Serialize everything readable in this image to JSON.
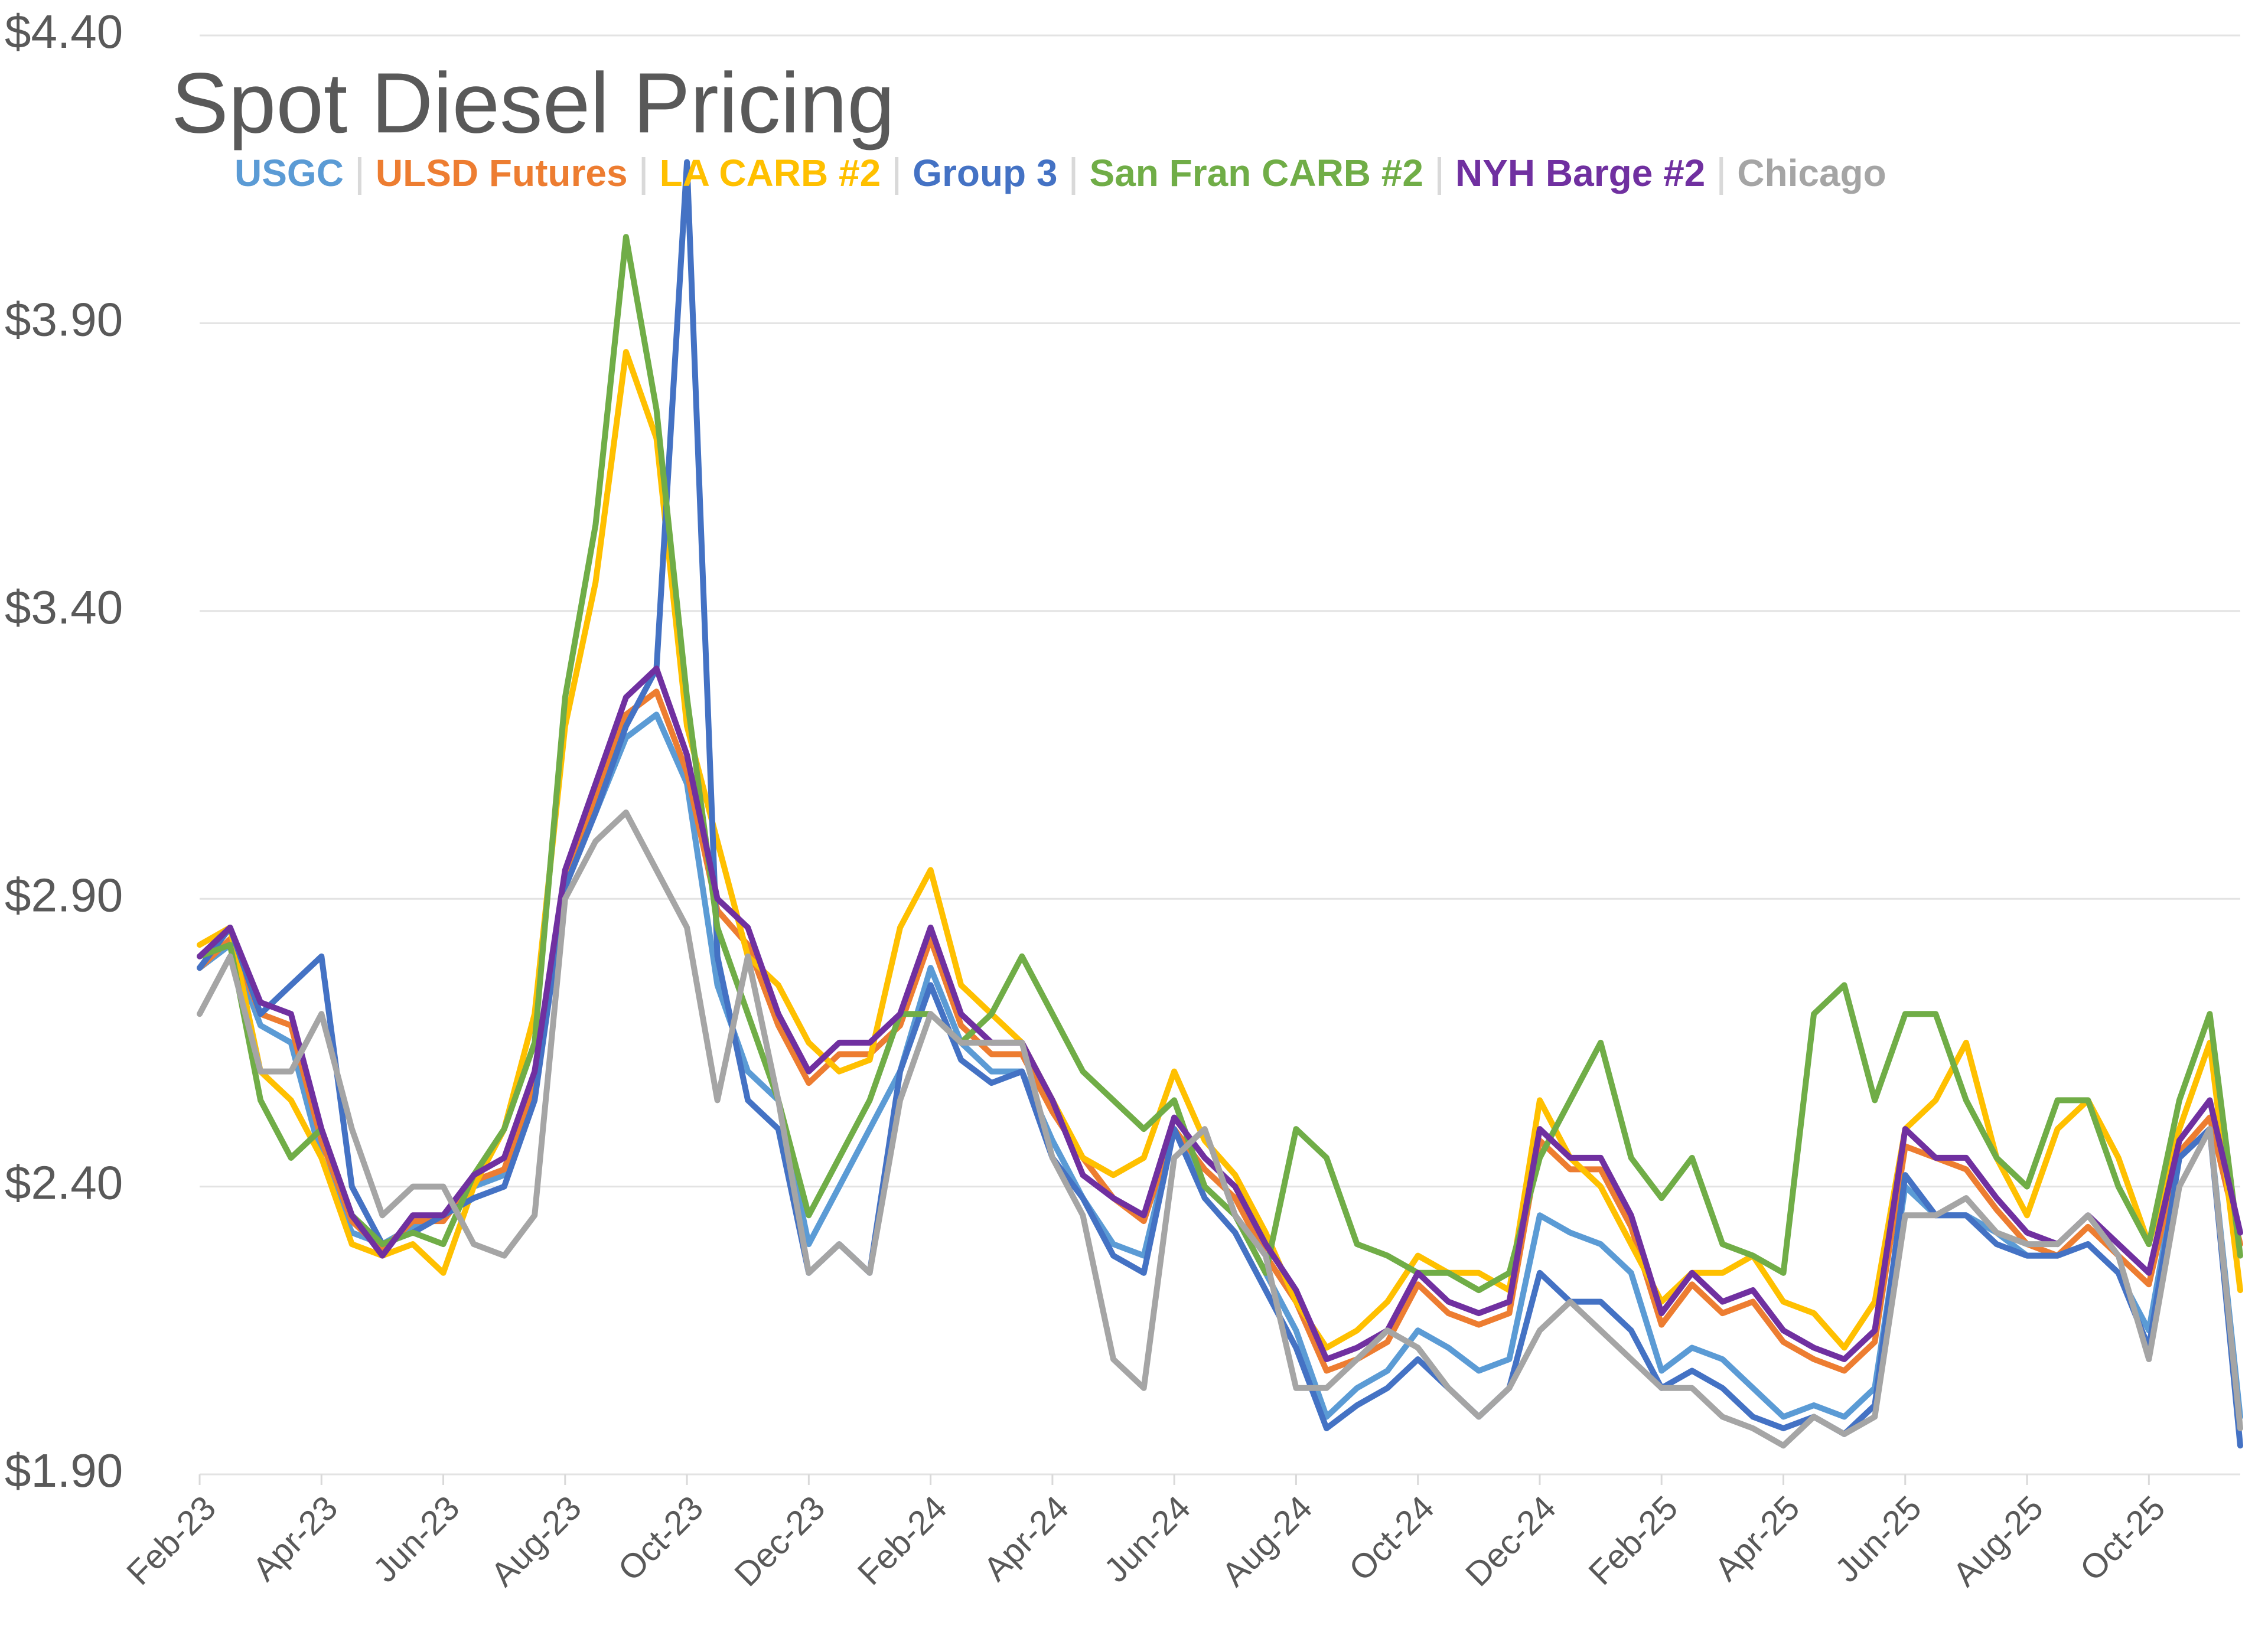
{
  "chart_data": {
    "type": "line",
    "title": "Spot Diesel Pricing",
    "categories": [
      "Feb-23",
      null,
      null,
      null,
      "Apr-23",
      null,
      null,
      null,
      "Jun-23",
      null,
      null,
      null,
      "Aug-23",
      null,
      null,
      null,
      "Oct-23",
      null,
      null,
      null,
      "Dec-23",
      null,
      null,
      null,
      "Feb-24",
      null,
      null,
      null,
      "Apr-24",
      null,
      null,
      null,
      "Jun-24",
      null,
      null,
      null,
      "Aug-24",
      null,
      null,
      null,
      "Oct-24",
      null,
      null,
      null,
      "Dec-24",
      null,
      null,
      null,
      "Feb-25",
      null,
      null,
      null,
      "Apr-25",
      null,
      null,
      null,
      "Jun-25",
      null,
      null,
      null,
      "Aug-25",
      null,
      null,
      null,
      "Oct-25",
      null,
      null,
      null
    ],
    "ylim": [
      1.9,
      4.4
    ],
    "yticks": [
      {
        "value": 1.9,
        "label": "$1.90"
      },
      {
        "value": 2.4,
        "label": "$2.40"
      },
      {
        "value": 2.9,
        "label": "$2.90"
      },
      {
        "value": 3.4,
        "label": "$3.40"
      },
      {
        "value": 3.9,
        "label": "$3.90"
      },
      {
        "value": 4.4,
        "label": "$4.40"
      }
    ],
    "grid": true,
    "series": [
      {
        "name": "USGC",
        "color": "#5b9bd5",
        "values": [
          2.78,
          2.82,
          2.68,
          2.65,
          2.45,
          2.32,
          2.3,
          2.33,
          2.35,
          2.4,
          2.42,
          2.58,
          2.92,
          3.05,
          3.18,
          3.22,
          3.1,
          2.75,
          2.6,
          2.55,
          2.3,
          2.4,
          2.5,
          2.6,
          2.78,
          2.65,
          2.6,
          2.6,
          2.48,
          2.38,
          2.3,
          2.28,
          2.5,
          2.4,
          2.35,
          2.25,
          2.15,
          2.0,
          2.05,
          2.08,
          2.15,
          2.12,
          2.08,
          2.1,
          2.35,
          2.32,
          2.3,
          2.25,
          2.08,
          2.12,
          2.1,
          2.05,
          2.0,
          2.02,
          2.0,
          2.05,
          2.4,
          2.35,
          2.35,
          2.32,
          2.28,
          2.28,
          2.3,
          2.25,
          2.15,
          2.45,
          2.5,
          2.0
        ]
      },
      {
        "name": "ULSD Futures",
        "color": "#ed7d31",
        "values": [
          2.78,
          2.83,
          2.7,
          2.68,
          2.48,
          2.34,
          2.29,
          2.34,
          2.34,
          2.41,
          2.43,
          2.58,
          2.93,
          3.08,
          3.22,
          3.26,
          3.12,
          2.88,
          2.82,
          2.68,
          2.58,
          2.63,
          2.63,
          2.68,
          2.83,
          2.68,
          2.63,
          2.63,
          2.53,
          2.45,
          2.38,
          2.34,
          2.5,
          2.43,
          2.38,
          2.28,
          2.2,
          2.08,
          2.1,
          2.13,
          2.23,
          2.18,
          2.16,
          2.18,
          2.48,
          2.43,
          2.43,
          2.33,
          2.16,
          2.23,
          2.18,
          2.2,
          2.13,
          2.1,
          2.08,
          2.13,
          2.47,
          2.45,
          2.43,
          2.36,
          2.3,
          2.28,
          2.33,
          2.28,
          2.23,
          2.46,
          2.52,
          2.3
        ]
      },
      {
        "name": "LA CARB #2",
        "color": "#ffc000",
        "values": [
          2.82,
          2.85,
          2.6,
          2.55,
          2.45,
          2.3,
          2.28,
          2.3,
          2.25,
          2.4,
          2.5,
          2.7,
          3.2,
          3.45,
          3.85,
          3.7,
          3.2,
          3.0,
          2.8,
          2.75,
          2.65,
          2.6,
          2.62,
          2.85,
          2.95,
          2.75,
          2.7,
          2.65,
          2.55,
          2.45,
          2.42,
          2.45,
          2.6,
          2.48,
          2.42,
          2.32,
          2.2,
          2.12,
          2.15,
          2.2,
          2.28,
          2.25,
          2.25,
          2.22,
          2.55,
          2.45,
          2.4,
          2.3,
          2.2,
          2.25,
          2.25,
          2.28,
          2.2,
          2.18,
          2.12,
          2.2,
          2.5,
          2.55,
          2.65,
          2.45,
          2.35,
          2.5,
          2.55,
          2.45,
          2.3,
          2.5,
          2.65,
          2.22
        ]
      },
      {
        "name": "Group 3",
        "color": "#4472c4",
        "values": [
          2.78,
          2.85,
          2.7,
          2.75,
          2.8,
          2.4,
          2.3,
          2.32,
          2.35,
          2.38,
          2.4,
          2.55,
          2.92,
          3.05,
          3.2,
          3.3,
          4.18,
          2.8,
          2.55,
          2.5,
          2.25,
          2.3,
          2.25,
          2.6,
          2.75,
          2.62,
          2.58,
          2.6,
          2.45,
          2.38,
          2.28,
          2.25,
          2.5,
          2.38,
          2.32,
          2.22,
          2.12,
          1.98,
          2.02,
          2.05,
          2.1,
          2.05,
          2.0,
          2.05,
          2.25,
          2.2,
          2.2,
          2.15,
          2.05,
          2.08,
          2.05,
          2.0,
          1.98,
          2.0,
          1.97,
          2.02,
          2.42,
          2.35,
          2.35,
          2.3,
          2.28,
          2.28,
          2.3,
          2.25,
          2.12,
          2.45,
          2.5,
          1.95
        ]
      },
      {
        "name": "San Fran CARB #2",
        "color": "#70ad47",
        "values": [
          2.8,
          2.82,
          2.55,
          2.45,
          2.5,
          2.35,
          2.3,
          2.32,
          2.3,
          2.42,
          2.5,
          2.65,
          3.25,
          3.55,
          4.05,
          3.75,
          3.25,
          2.85,
          2.7,
          2.55,
          2.35,
          2.45,
          2.55,
          2.7,
          2.7,
          2.65,
          2.7,
          2.8,
          2.7,
          2.6,
          2.55,
          2.5,
          2.55,
          2.4,
          2.35,
          2.25,
          2.5,
          2.45,
          2.3,
          2.28,
          2.25,
          2.25,
          2.22,
          2.25,
          2.45,
          2.55,
          2.65,
          2.45,
          2.38,
          2.45,
          2.3,
          2.28,
          2.25,
          2.7,
          2.75,
          2.55,
          2.7,
          2.7,
          2.55,
          2.45,
          2.4,
          2.55,
          2.55,
          2.4,
          2.3,
          2.55,
          2.7,
          2.28
        ]
      },
      {
        "name": "NYH Barge #2",
        "color": "#7030a0",
        "values": [
          2.8,
          2.85,
          2.72,
          2.7,
          2.5,
          2.35,
          2.28,
          2.35,
          2.35,
          2.42,
          2.45,
          2.6,
          2.95,
          3.1,
          3.25,
          3.3,
          3.15,
          2.9,
          2.85,
          2.7,
          2.6,
          2.65,
          2.65,
          2.7,
          2.85,
          2.7,
          2.65,
          2.65,
          2.55,
          2.42,
          2.38,
          2.35,
          2.52,
          2.45,
          2.4,
          2.3,
          2.22,
          2.1,
          2.12,
          2.15,
          2.25,
          2.2,
          2.18,
          2.2,
          2.5,
          2.45,
          2.45,
          2.35,
          2.18,
          2.25,
          2.2,
          2.22,
          2.15,
          2.12,
          2.1,
          2.15,
          2.5,
          2.45,
          2.45,
          2.38,
          2.32,
          2.3,
          2.35,
          2.3,
          2.25,
          2.48,
          2.55,
          2.32
        ]
      },
      {
        "name": "Chicago",
        "color": "#a5a5a5",
        "values": [
          2.7,
          2.8,
          2.6,
          2.6,
          2.7,
          2.5,
          2.35,
          2.4,
          2.4,
          2.3,
          2.28,
          2.35,
          2.9,
          3.0,
          3.05,
          2.95,
          2.85,
          2.55,
          2.8,
          2.55,
          2.25,
          2.3,
          2.25,
          2.55,
          2.7,
          2.65,
          2.65,
          2.65,
          2.45,
          2.35,
          2.1,
          2.05,
          2.45,
          2.5,
          2.35,
          2.28,
          2.05,
          2.05,
          2.1,
          2.15,
          2.12,
          2.05,
          2.0,
          2.05,
          2.15,
          2.2,
          2.15,
          2.1,
          2.05,
          2.05,
          2.0,
          1.98,
          1.95,
          2.0,
          1.97,
          2.0,
          2.35,
          2.35,
          2.38,
          2.32,
          2.3,
          2.3,
          2.35,
          2.28,
          2.1,
          2.4,
          2.5,
          1.98
        ]
      }
    ]
  }
}
